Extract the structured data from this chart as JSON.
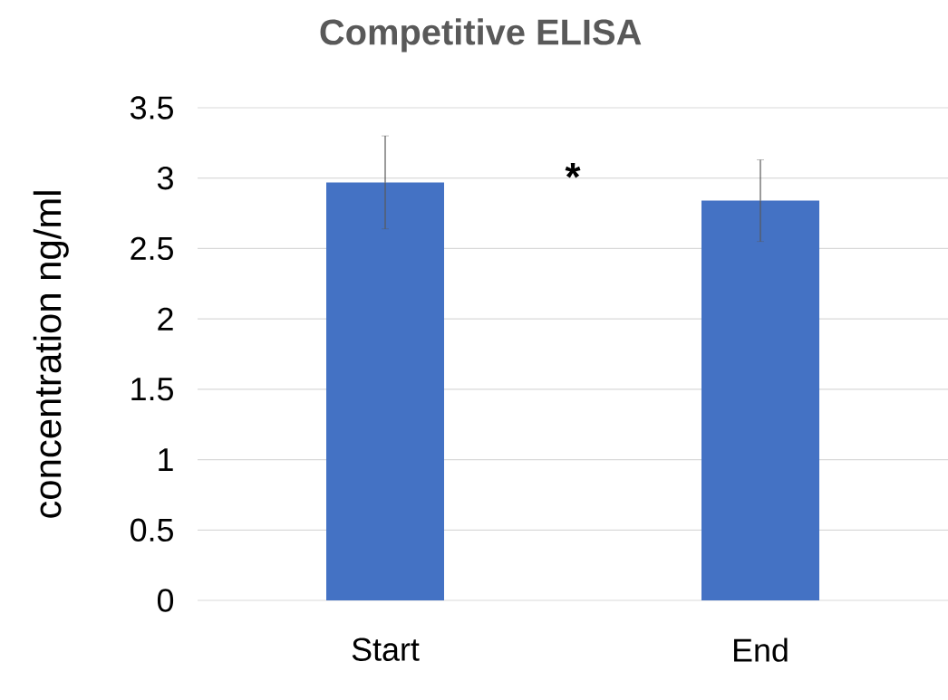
{
  "chart_data": {
    "type": "bar",
    "title": "Competitive ELISA",
    "ylabel": "concentration ng/ml",
    "categories": [
      "Start",
      "End"
    ],
    "values": [
      2.97,
      2.84
    ],
    "errors": [
      0.33,
      0.29
    ],
    "color": "#4472c4",
    "ylim": [
      0,
      3.5
    ],
    "yticks": [
      0,
      0.5,
      1,
      1.5,
      2,
      2.5,
      3,
      3.5
    ],
    "grid": "y",
    "annotations": [
      "*"
    ]
  }
}
